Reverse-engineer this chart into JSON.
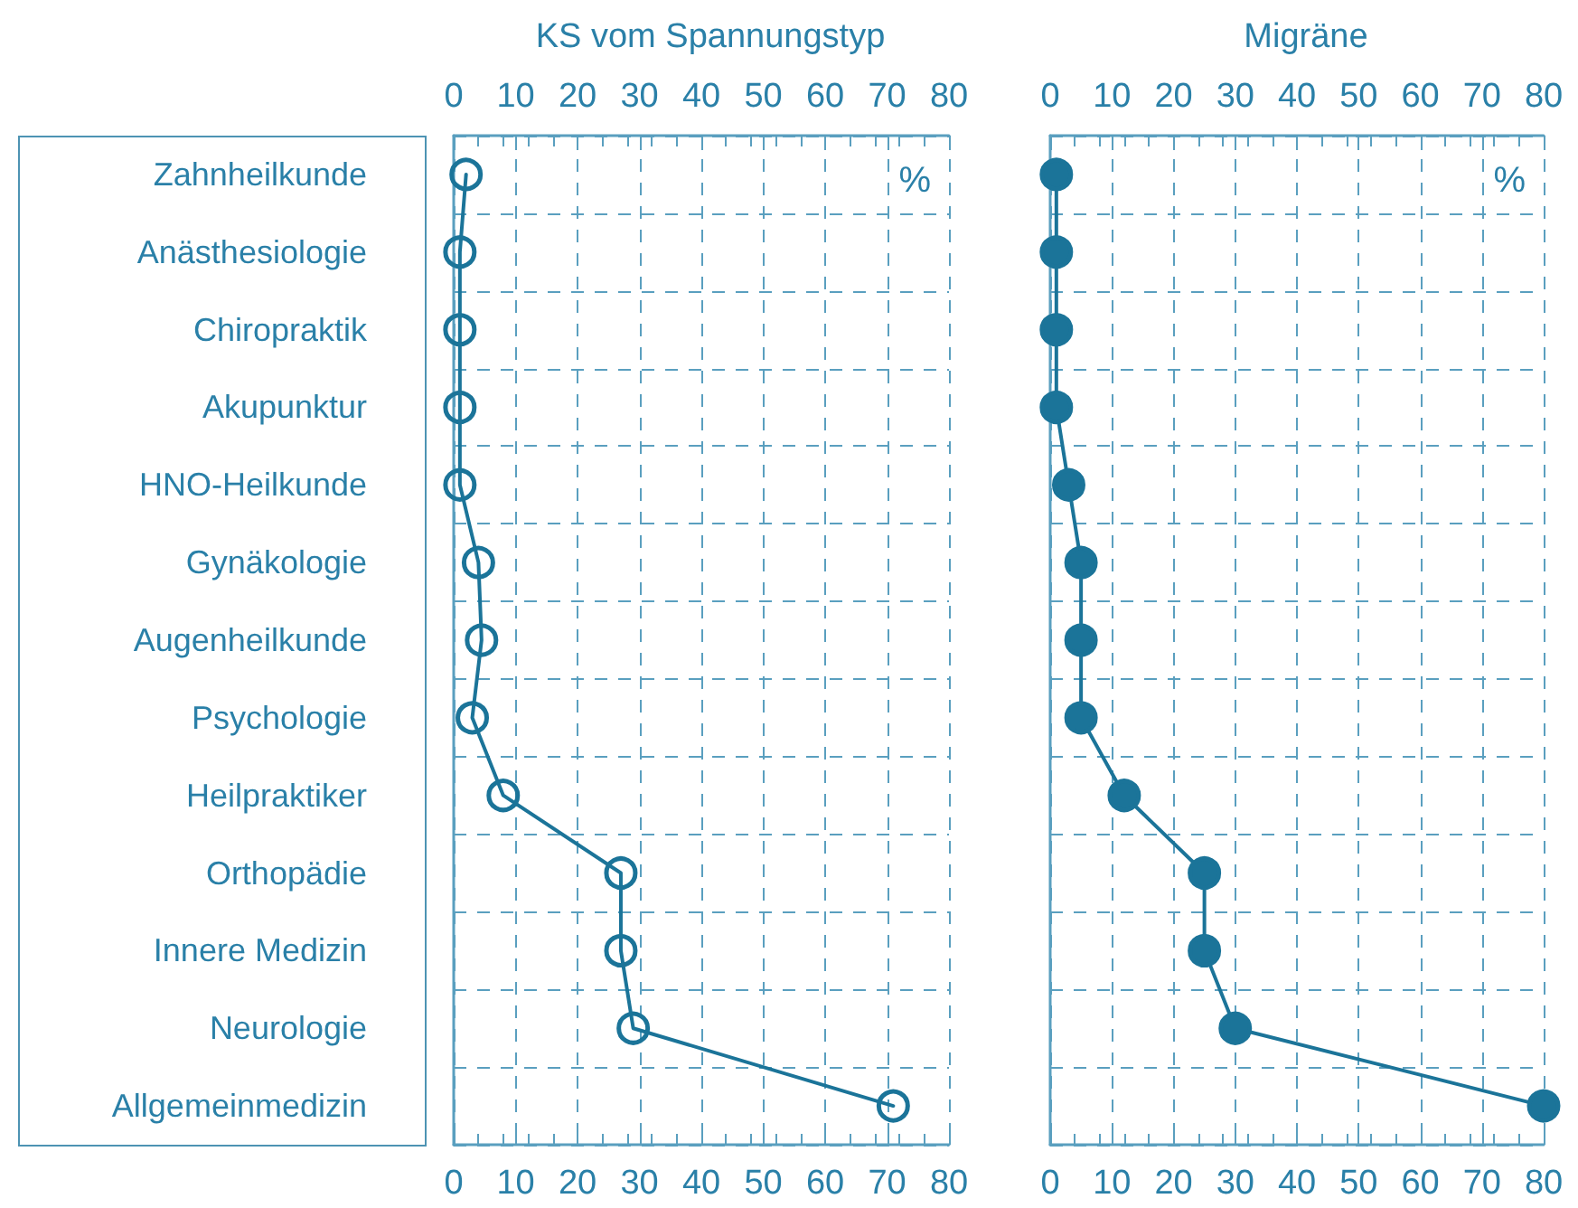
{
  "chart_data": [
    {
      "type": "line",
      "title": "KS vom Spannungstyp",
      "categories": [
        "Zahnheilkunde",
        "Anästhesiologie",
        "Chiropraktik",
        "Akupunktur",
        "HNO-Heilkunde",
        "Gynäkologie",
        "Augenheilkunde",
        "Psychologie",
        "Heilpraktiker",
        "Orthopädie",
        "Innere Medizin",
        "Neurologie",
        "Allgemeinmedizin"
      ],
      "series": [
        {
          "color": "#1b7499",
          "values": [
            2,
            1,
            1,
            1,
            1,
            4,
            4.5,
            3,
            8,
            27,
            27,
            29,
            71
          ]
        }
      ],
      "xlim": [
        0,
        80
      ],
      "xticks": [
        0,
        10,
        20,
        30,
        40,
        50,
        60,
        70,
        80
      ],
      "x2lim": [
        0,
        80
      ],
      "x2ticks": [
        0,
        10,
        20,
        30,
        40,
        50,
        60,
        70,
        80
      ],
      "annotations": [
        "%"
      ],
      "grid": true,
      "marker": "circle",
      "line_style": "solid",
      "orientation": "horizontal"
    },
    {
      "type": "line",
      "title": "Migräne",
      "categories": [
        null,
        null,
        null,
        null,
        null,
        null,
        null,
        null,
        null,
        null,
        null,
        null,
        null
      ],
      "series": [
        {
          "color": "#1b7499",
          "values": [
            1,
            1,
            1,
            1,
            3,
            5,
            5,
            5,
            12,
            25,
            25,
            30,
            80
          ]
        }
      ],
      "xlim": [
        0,
        80
      ],
      "xticks": [
        0,
        10,
        20,
        30,
        40,
        50,
        60,
        70,
        80
      ],
      "x2lim": [
        0,
        80
      ],
      "x2ticks": [
        0,
        10,
        20,
        30,
        40,
        50,
        60,
        70,
        80
      ],
      "annotations": [
        "%"
      ],
      "grid": true,
      "marker": "circle",
      "line_style": "solid",
      "tick_labels": "x",
      "orientation": "horizontal"
    }
  ]
}
